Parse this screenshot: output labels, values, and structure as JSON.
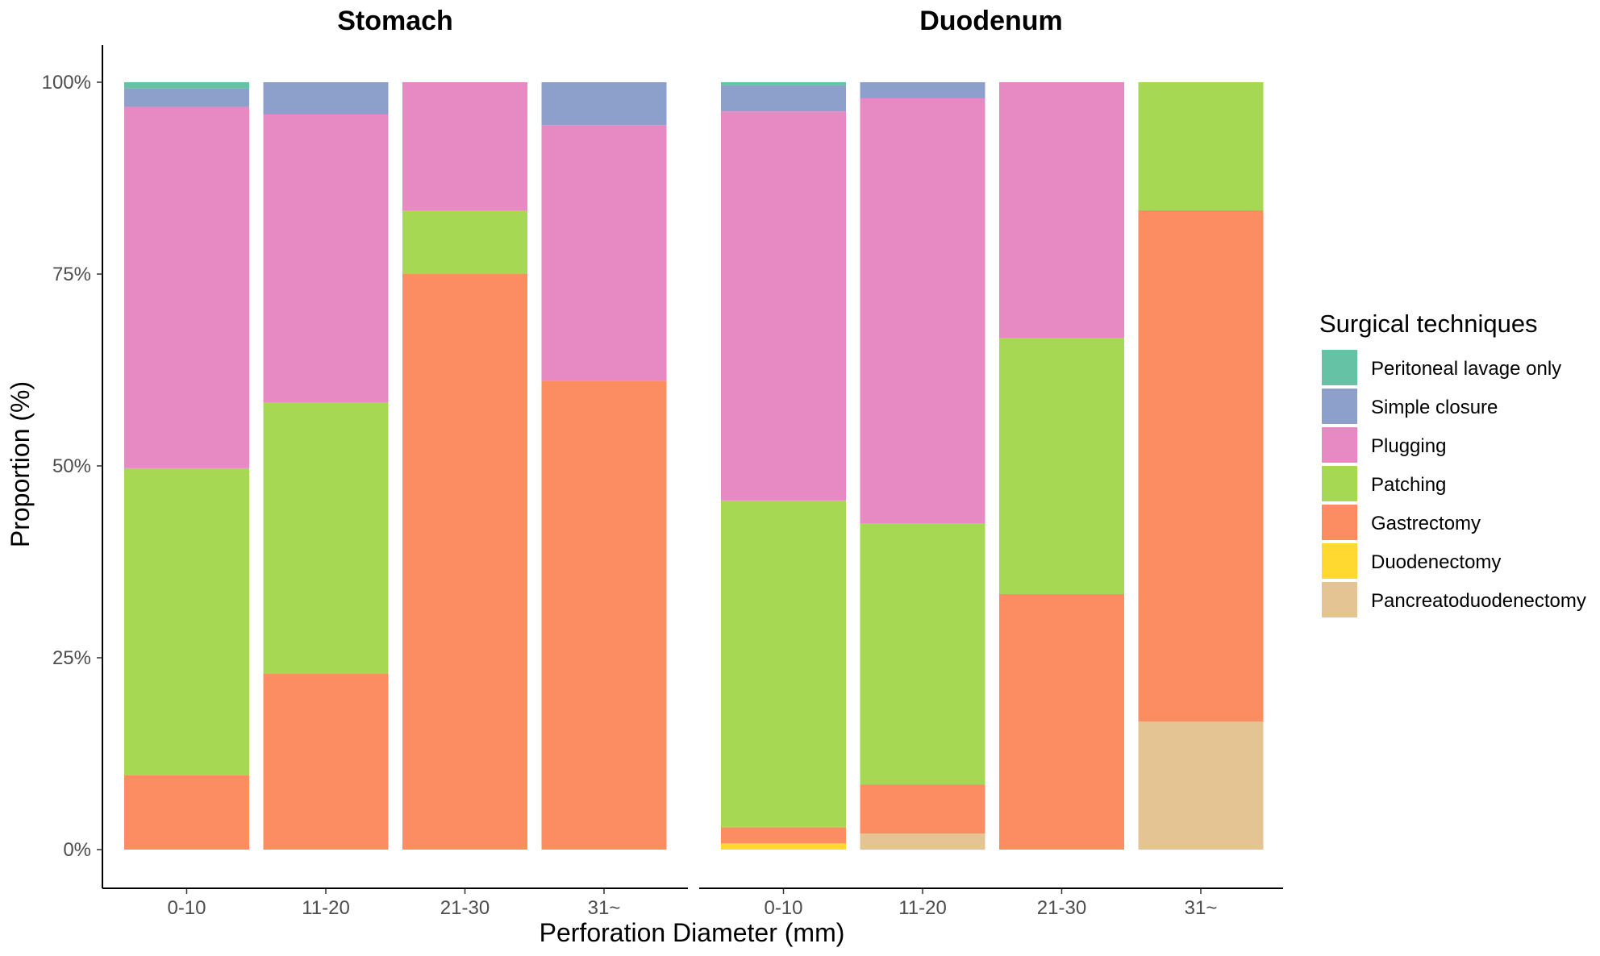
{
  "chart_data": {
    "type": "bar",
    "stacked": true,
    "xlabel": "Perforation Diameter (mm)",
    "ylabel": "Proportion (%)",
    "ylim": [
      0,
      1
    ],
    "yticks": [
      "0%",
      "25%",
      "50%",
      "75%",
      "100%"
    ],
    "ytick_values": [
      0,
      0.25,
      0.5,
      0.75,
      1.0
    ],
    "categories": [
      "0-10",
      "11-20",
      "21-30",
      "31~"
    ],
    "legend": {
      "title": "Surgical techniques",
      "position": "right",
      "entries": [
        {
          "name": "Peritoneal lavage only",
          "color": "#66C2A5"
        },
        {
          "name": "Simple closure",
          "color": "#8DA0CB"
        },
        {
          "name": "Plugging",
          "color": "#E78AC3"
        },
        {
          "name": "Patching",
          "color": "#A6D854"
        },
        {
          "name": "Gastrectomy",
          "color": "#FC8D62"
        },
        {
          "name": "Duodenectomy",
          "color": "#FFD92F"
        },
        {
          "name": "Pancreatoduodenectomy",
          "color": "#E5C494"
        }
      ]
    },
    "stack_order_bottom_to_top": [
      "Pancreatoduodenectomy",
      "Duodenectomy",
      "Gastrectomy",
      "Patching",
      "Plugging",
      "Simple closure",
      "Peritoneal lavage only"
    ],
    "facets": [
      {
        "title": "Stomach",
        "bars": [
          {
            "category": "0-10",
            "values": {
              "Pancreatoduodenectomy": 0,
              "Duodenectomy": 0,
              "Gastrectomy": 0.097,
              "Patching": 0.4,
              "Plugging": 0.471,
              "Simple closure": 0.024,
              "Peritoneal lavage only": 0.008
            }
          },
          {
            "category": "11-20",
            "values": {
              "Pancreatoduodenectomy": 0,
              "Duodenectomy": 0,
              "Gastrectomy": 0.229,
              "Patching": 0.354,
              "Plugging": 0.375,
              "Simple closure": 0.042,
              "Peritoneal lavage only": 0
            }
          },
          {
            "category": "21-30",
            "values": {
              "Pancreatoduodenectomy": 0,
              "Duodenectomy": 0,
              "Gastrectomy": 0.75,
              "Patching": 0.083,
              "Plugging": 0.167,
              "Simple closure": 0,
              "Peritoneal lavage only": 0
            }
          },
          {
            "category": "31~",
            "values": {
              "Pancreatoduodenectomy": 0,
              "Duodenectomy": 0,
              "Gastrectomy": 0.611,
              "Patching": 0,
              "Plugging": 0.333,
              "Simple closure": 0.056,
              "Peritoneal lavage only": 0
            }
          }
        ]
      },
      {
        "title": "Duodenum",
        "bars": [
          {
            "category": "0-10",
            "values": {
              "Pancreatoduodenectomy": 0,
              "Duodenectomy": 0.008,
              "Gastrectomy": 0.021,
              "Patching": 0.426,
              "Plugging": 0.507,
              "Simple closure": 0.034,
              "Peritoneal lavage only": 0.004
            }
          },
          {
            "category": "11-20",
            "values": {
              "Pancreatoduodenectomy": 0.021,
              "Duodenectomy": 0,
              "Gastrectomy": 0.064,
              "Patching": 0.34,
              "Plugging": 0.554,
              "Simple closure": 0.021,
              "Peritoneal lavage only": 0
            }
          },
          {
            "category": "21-30",
            "values": {
              "Pancreatoduodenectomy": 0,
              "Duodenectomy": 0,
              "Gastrectomy": 0.333,
              "Patching": 0.334,
              "Plugging": 0.333,
              "Simple closure": 0,
              "Peritoneal lavage only": 0
            }
          },
          {
            "category": "31~",
            "values": {
              "Pancreatoduodenectomy": 0.167,
              "Duodenectomy": 0,
              "Gastrectomy": 0.666,
              "Patching": 0.167,
              "Plugging": 0,
              "Simple closure": 0,
              "Peritoneal lavage only": 0
            }
          }
        ]
      }
    ]
  }
}
